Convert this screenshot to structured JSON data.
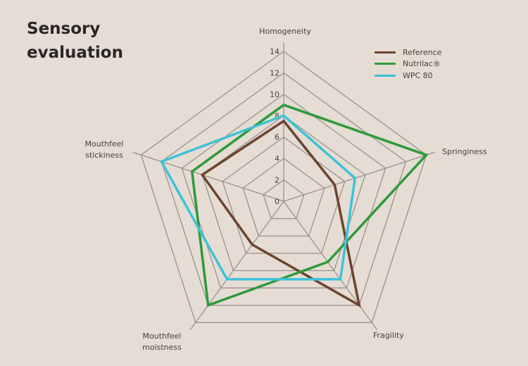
{
  "chart_data": {
    "type": "radar",
    "title": "Sensory evaluation",
    "axes": [
      "Homogeneity",
      "Springiness",
      "Fragility",
      "Mouthfeel moistness",
      "Mouthfeel stickiness"
    ],
    "rlim": [
      0,
      14
    ],
    "ticks": [
      "0",
      "2",
      "4",
      "6",
      "8",
      "10",
      "12",
      "14"
    ],
    "grid": true,
    "legend_position": "top-right",
    "series": [
      {
        "name": "Reference",
        "color": "#6b4530",
        "values": [
          7.5,
          5,
          12,
          5,
          8
        ]
      },
      {
        "name": "Nutrilac®",
        "color": "#2e9a3a",
        "values": [
          9,
          14,
          7,
          12,
          9
        ]
      },
      {
        "name": "WPC 80",
        "color": "#3cc3d8",
        "values": [
          8,
          7,
          9,
          9,
          12
        ]
      }
    ]
  }
}
